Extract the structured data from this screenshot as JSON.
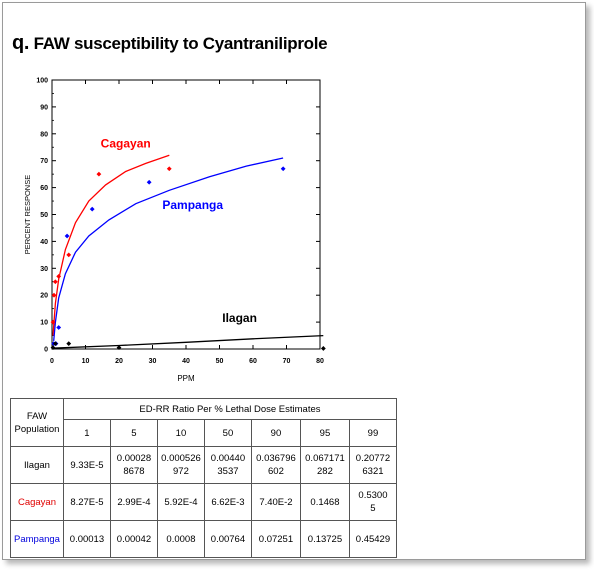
{
  "title_prefix": "q.",
  "title_text": "FAW susceptibility to Cyantraniliprole",
  "chart_data": {
    "type": "scatter",
    "xlabel": "PPM",
    "ylabel": "PERCENT  RESPONSE",
    "xlim": [
      0,
      80
    ],
    "ylim": [
      0,
      100
    ],
    "x_ticks": [
      0,
      10,
      20,
      30,
      40,
      50,
      60,
      70,
      80
    ],
    "y_ticks": [
      0,
      10,
      20,
      30,
      40,
      50,
      60,
      70,
      80,
      90,
      100
    ],
    "series": [
      {
        "name": "Cagayan",
        "color": "#ff0000",
        "points": [
          [
            0.3,
            10
          ],
          [
            0.6,
            20
          ],
          [
            1.0,
            25
          ],
          [
            2.0,
            27
          ],
          [
            5.0,
            35
          ],
          [
            14,
            65
          ],
          [
            35,
            67
          ]
        ],
        "curve": [
          [
            0.3,
            5
          ],
          [
            1,
            17
          ],
          [
            2,
            26
          ],
          [
            4,
            37
          ],
          [
            7,
            47
          ],
          [
            11,
            55
          ],
          [
            16,
            61
          ],
          [
            22,
            66
          ],
          [
            28,
            69
          ],
          [
            35,
            72
          ]
        ]
      },
      {
        "name": "Pampanga",
        "color": "#0000ff",
        "points": [
          [
            0.5,
            2
          ],
          [
            1.2,
            2
          ],
          [
            2.0,
            8
          ],
          [
            4.5,
            42
          ],
          [
            12,
            52
          ],
          [
            29,
            62
          ],
          [
            69,
            67
          ]
        ],
        "curve": [
          [
            0.5,
            3
          ],
          [
            1,
            10
          ],
          [
            2,
            19
          ],
          [
            4,
            28
          ],
          [
            7,
            36
          ],
          [
            11,
            42
          ],
          [
            17,
            48
          ],
          [
            25,
            54
          ],
          [
            35,
            59
          ],
          [
            47,
            64
          ],
          [
            58,
            68
          ],
          [
            69,
            71
          ]
        ]
      },
      {
        "name": "Ilagan",
        "color": "#000000",
        "points": [
          [
            0.3,
            0.5
          ],
          [
            1.0,
            2.0
          ],
          [
            5.0,
            2.0
          ],
          [
            20,
            0.5
          ],
          [
            81,
            0.2
          ]
        ],
        "curve": [
          [
            0,
            0.3
          ],
          [
            20,
            1.3
          ],
          [
            40,
            2.5
          ],
          [
            60,
            3.8
          ],
          [
            81,
            5
          ]
        ]
      }
    ]
  },
  "table": {
    "corner_label_1": "FAW",
    "corner_label_2": "Population",
    "group_header": "ED-RR   Ratio Per % Lethal Dose Estimates",
    "columns": [
      "1",
      "5",
      "10",
      "50",
      "90",
      "95",
      "99"
    ],
    "rows": [
      {
        "name": "Ilagan",
        "color": "#000000",
        "values": [
          [
            "9.33E-5"
          ],
          [
            "0.00028",
            "8678"
          ],
          [
            "0.000526",
            "972"
          ],
          [
            "0.00440",
            "3537"
          ],
          [
            "0.036796",
            "602"
          ],
          [
            "0.067171",
            "282"
          ],
          [
            "0.20772",
            "6321"
          ]
        ]
      },
      {
        "name": "Cagayan",
        "color": "#e00000",
        "values": [
          [
            "8.27E-5"
          ],
          [
            "2.99E-4"
          ],
          [
            "5.92E-4"
          ],
          [
            "6.62E-3"
          ],
          [
            "7.40E-2"
          ],
          [
            "0.1468"
          ],
          [
            "0.5300",
            "5"
          ]
        ]
      },
      {
        "name": "Pampanga",
        "color": "#0000dd",
        "values": [
          [
            "0.00013"
          ],
          [
            "0.00042"
          ],
          [
            "0.0008"
          ],
          [
            "0.00764"
          ],
          [
            "0.07251"
          ],
          [
            "0.13725"
          ],
          [
            "0.45429"
          ]
        ]
      }
    ]
  }
}
